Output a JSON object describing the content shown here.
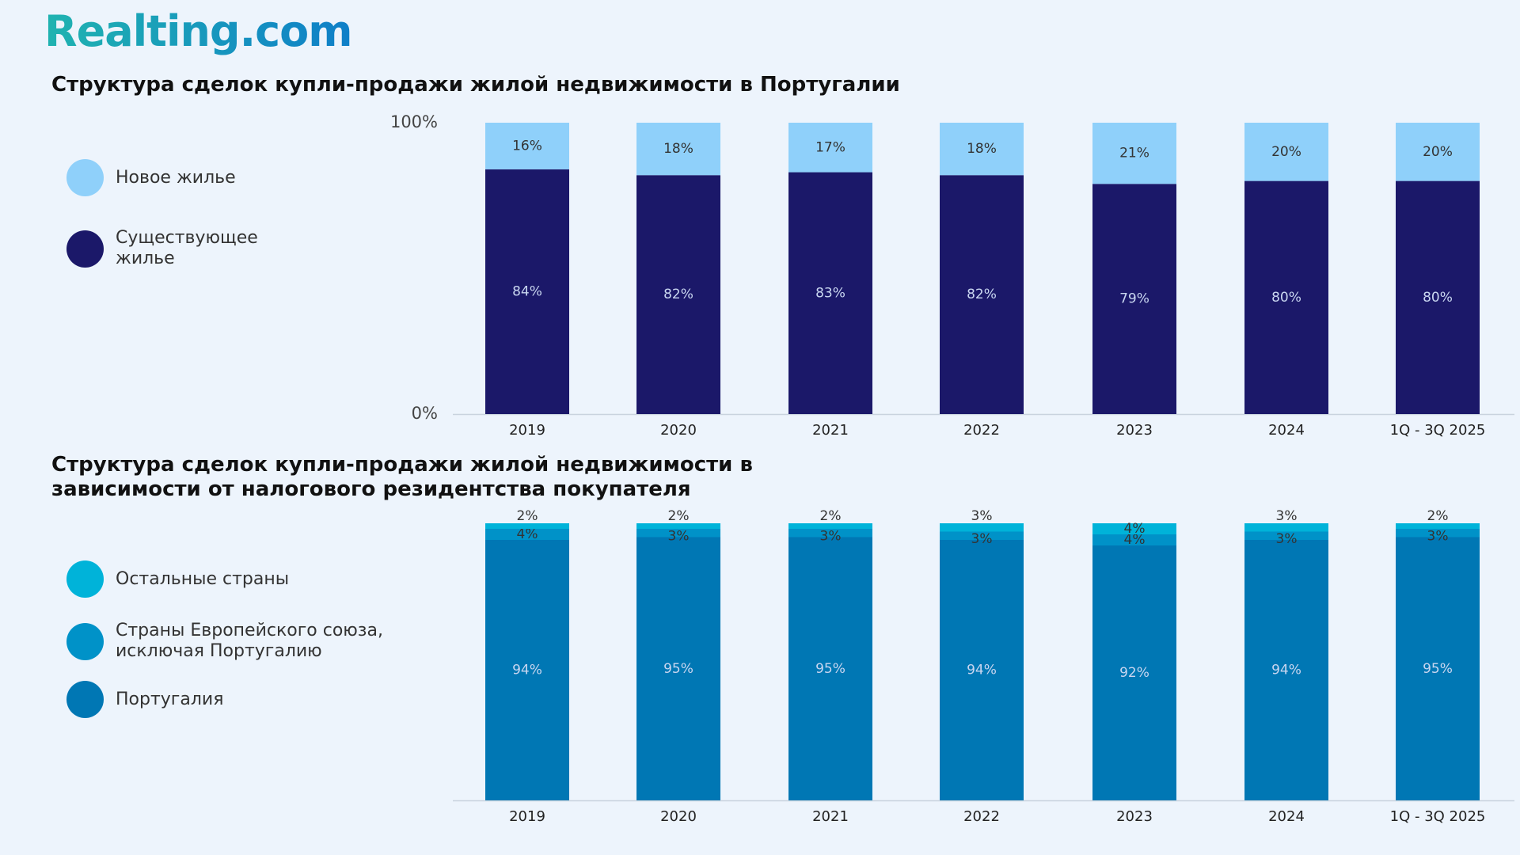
{
  "logo": "Realting.com",
  "chart_data": [
    {
      "type": "stacked_bar",
      "title": "Структура сделок купли-продажи жилой недвижимости в Португалии",
      "categories": [
        "2019",
        "2020",
        "2021",
        "2022",
        "2023",
        "2024",
        "1Q - 3Q 2025"
      ],
      "series": [
        {
          "name": "Существующее жилье",
          "color": "#1b1869",
          "values": [
            84,
            82,
            83,
            82,
            79,
            80,
            80
          ],
          "value_labels": [
            "84%",
            "82%",
            "83%",
            "82%",
            "79%",
            "80%",
            "80%"
          ]
        },
        {
          "name": "Новое жилье",
          "color": "#8fd0fa",
          "values": [
            16,
            18,
            17,
            18,
            21,
            20,
            20
          ],
          "value_labels": [
            "16%",
            "18%",
            "17%",
            "18%",
            "21%",
            "20%",
            "20%"
          ]
        }
      ],
      "ylim": [
        0,
        100
      ],
      "yticks": [
        {
          "value": 0,
          "label": "0%"
        },
        {
          "value": 100,
          "label": "100%"
        }
      ]
    },
    {
      "type": "stacked_bar",
      "title": "Структура сделок купли-продажи жилой недвижимости в зависимости от налогового резидентства покупателя",
      "categories": [
        "2019",
        "2020",
        "2021",
        "2022",
        "2023",
        "2024",
        "1Q - 3Q 2025"
      ],
      "series": [
        {
          "name": "Португалия",
          "color": "#0077b4",
          "values": [
            94,
            95,
            95,
            94,
            92,
            94,
            95
          ],
          "value_labels": [
            "94%",
            "95%",
            "95%",
            "94%",
            "92%",
            "94%",
            "95%"
          ]
        },
        {
          "name": "Страны Европейского союза, исключая Португалию",
          "color": "#0092c8",
          "values": [
            4,
            3,
            3,
            3,
            4,
            3,
            3
          ],
          "value_labels": [
            "4%",
            "3%",
            "3%",
            "3%",
            "4%",
            "3%",
            "3%"
          ]
        },
        {
          "name": "Остальные страны",
          "color": "#00b3d9",
          "values": [
            2,
            2,
            2,
            3,
            4,
            3,
            2
          ],
          "value_labels": [
            "2%",
            "2%",
            "2%",
            "3%",
            "4%",
            "3%",
            "2%"
          ]
        }
      ],
      "ylim": [
        0,
        100
      ]
    }
  ]
}
